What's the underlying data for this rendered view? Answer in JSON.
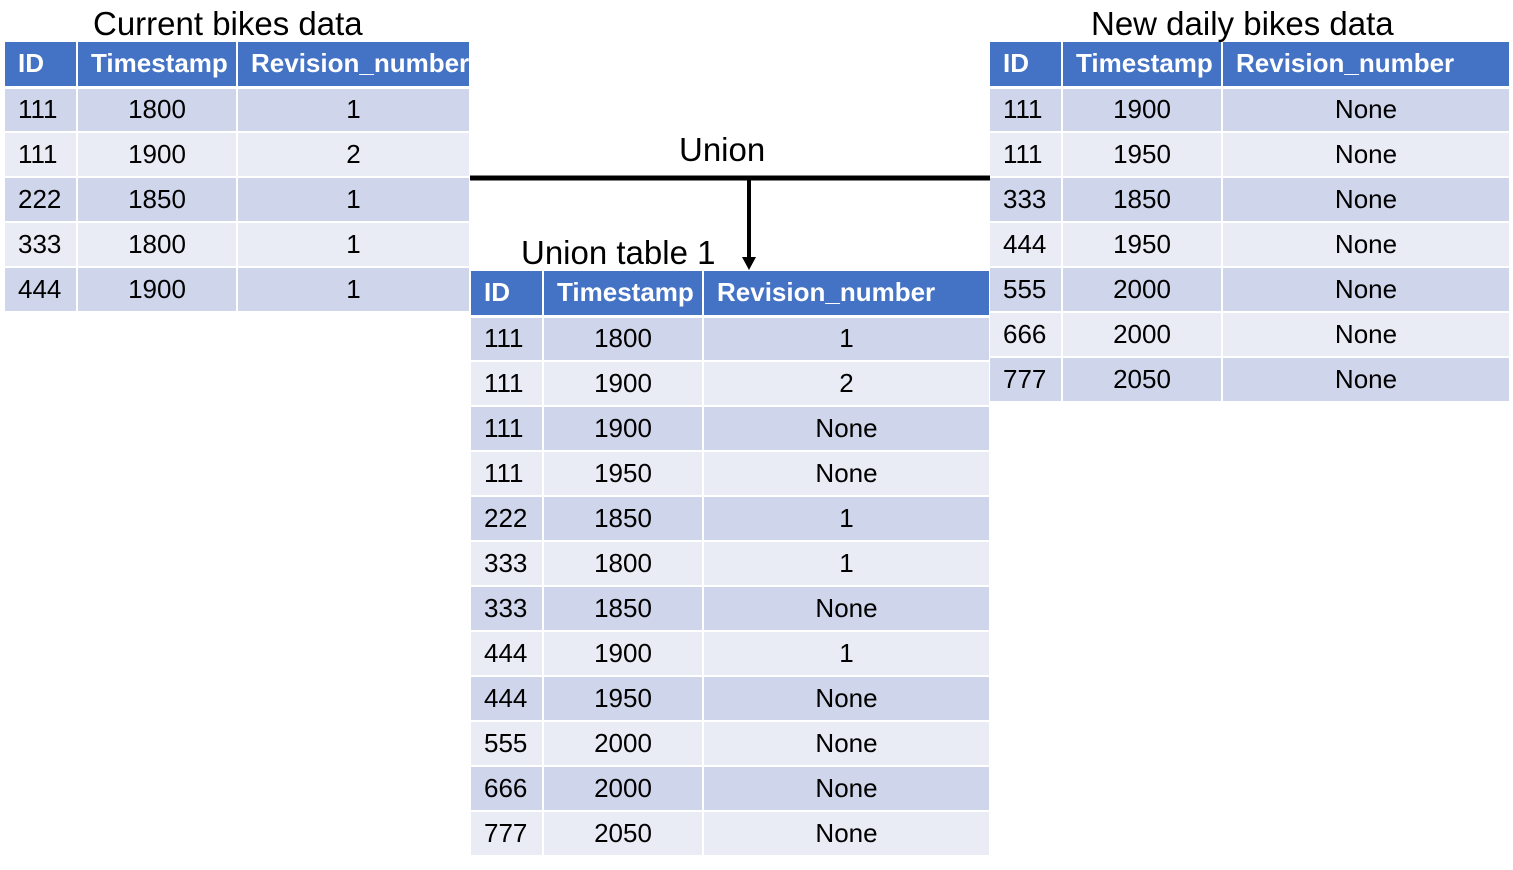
{
  "captions": {
    "current": "Current bikes data",
    "new_daily": "New daily bikes data",
    "union_op": "Union",
    "union_table": "Union table 1"
  },
  "columns": [
    "ID",
    "Timestamp",
    "Revision_number"
  ],
  "current_table": [
    [
      "111",
      "1800",
      "1"
    ],
    [
      "111",
      "1900",
      "2"
    ],
    [
      "222",
      "1850",
      "1"
    ],
    [
      "333",
      "1800",
      "1"
    ],
    [
      "444",
      "1900",
      "1"
    ]
  ],
  "new_table": [
    [
      "111",
      "1900",
      "None"
    ],
    [
      "111",
      "1950",
      "None"
    ],
    [
      "333",
      "1850",
      "None"
    ],
    [
      "444",
      "1950",
      "None"
    ],
    [
      "555",
      "2000",
      "None"
    ],
    [
      "666",
      "2000",
      "None"
    ],
    [
      "777",
      "2050",
      "None"
    ]
  ],
  "union_table": [
    [
      "111",
      "1800",
      "1"
    ],
    [
      "111",
      "1900",
      "2"
    ],
    [
      "111",
      "1900",
      "None"
    ],
    [
      "111",
      "1950",
      "None"
    ],
    [
      "222",
      "1850",
      "1"
    ],
    [
      "333",
      "1800",
      "1"
    ],
    [
      "333",
      "1850",
      "None"
    ],
    [
      "444",
      "1900",
      "1"
    ],
    [
      "444",
      "1950",
      "None"
    ],
    [
      "555",
      "2000",
      "None"
    ],
    [
      "666",
      "2000",
      "None"
    ],
    [
      "777",
      "2050",
      "None"
    ]
  ],
  "colors": {
    "header": "#4472c4",
    "row_dark": "#cfd5ea",
    "row_light": "#e9ebf5",
    "connector": "#000000"
  }
}
